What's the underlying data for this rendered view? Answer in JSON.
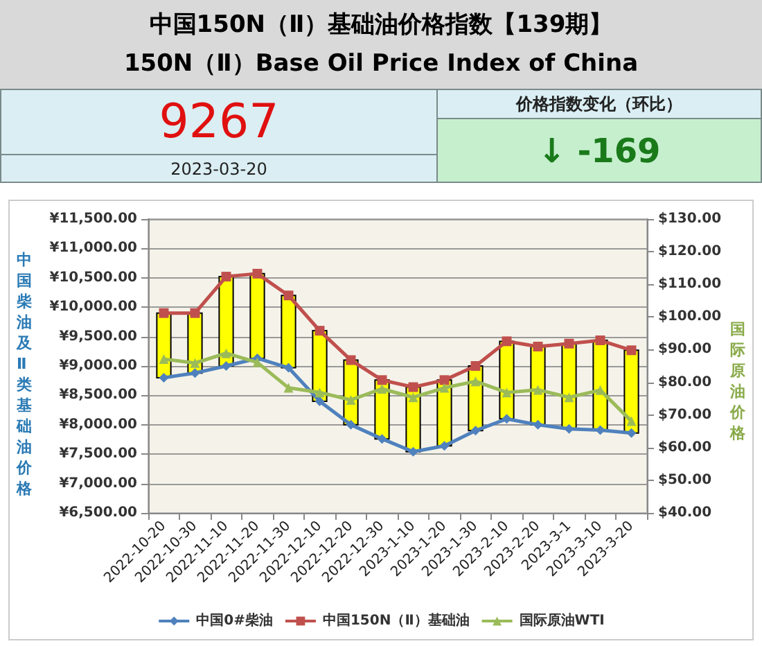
{
  "chart_data": {
    "type": "line",
    "title": "中国150N（Ⅱ）基础油价格指数【139期】",
    "subtitle": "150N（Ⅱ）Base Oil Price Index of China",
    "annotations": [
      "9267",
      "2023-03-20",
      "价格指数变化（环比）",
      "↓ -169"
    ],
    "ylabel": "中国柴油及Ⅱ类基础油价格",
    "y2label": "国际原油价格",
    "categories": [
      "2022-10-20",
      "2022-10-30",
      "2022-11-10",
      "2022-11-20",
      "2022-11-30",
      "2022-12-10",
      "2022-12-20",
      "2022-12-30",
      "2023-1-10",
      "2023-1-20",
      "2023-1-30",
      "2023-2-10",
      "2023-2-20",
      "2023-3-1",
      "2023-3-10",
      "2023-3-20"
    ],
    "series": [
      {
        "name": "中国0#柴油",
        "color": "#4f81bd",
        "marker": "diamond",
        "values": [
          8800,
          8880,
          9000,
          9130,
          8970,
          8400,
          8000,
          7760,
          7540,
          7640,
          7900,
          8100,
          8000,
          7930,
          7910,
          7860
        ]
      },
      {
        "name": "中国150N（Ⅱ）基础油",
        "color": "#c0504d",
        "marker": "square",
        "values": [
          9900,
          9900,
          10520,
          10570,
          10200,
          9600,
          9100,
          8760,
          8640,
          8760,
          9000,
          9420,
          9330,
          9380,
          9436,
          9267
        ]
      },
      {
        "name": "国际原油WTI",
        "color": "#9bbb59",
        "marker": "triangle",
        "axis": "y2",
        "values": [
          87.1,
          85.9,
          88.9,
          86.1,
          78.3,
          76.9,
          74.6,
          78.0,
          75.4,
          78.3,
          80.3,
          76.9,
          77.7,
          75.4,
          77.6,
          68.1
        ]
      },
      {
        "type": "bar",
        "color": "#ffff00",
        "base": [
          8800,
          8880,
          9000,
          9130,
          8970,
          8400,
          8000,
          7760,
          7540,
          7640,
          7900,
          8100,
          8000,
          7930,
          7910,
          7860
        ],
        "values": [
          1100,
          1020,
          1520,
          1440,
          1230,
          1200,
          1100,
          1000,
          1100,
          1120,
          1100,
          1320,
          1330,
          1450,
          1526,
          1407
        ]
      }
    ],
    "ylim": [
      6500,
      11500
    ],
    "yticks": [
      {
        "value": 6500,
        "label": "¥6,500.00"
      },
      {
        "value": 7000,
        "label": "¥7,000.00"
      },
      {
        "value": 7500,
        "label": "¥7,500.00"
      },
      {
        "value": 8000,
        "label": "¥8,000.00"
      },
      {
        "value": 8500,
        "label": "¥8,500.00"
      },
      {
        "value": 9000,
        "label": "¥9,000.00"
      },
      {
        "value": 9500,
        "label": "¥9,500.00"
      },
      {
        "value": 10000,
        "label": "¥10,000.00"
      },
      {
        "value": 10500,
        "label": "¥10,500.00"
      },
      {
        "value": 11000,
        "label": "¥11,000.00"
      },
      {
        "value": 11500,
        "label": "¥11,500.00"
      }
    ],
    "y2lim": [
      40,
      130
    ],
    "y2ticks": [
      {
        "value": 40,
        "label": "$40.00"
      },
      {
        "value": 50,
        "label": "$50.00"
      },
      {
        "value": 60,
        "label": "$60.00"
      },
      {
        "value": 70,
        "label": "$70.00"
      },
      {
        "value": 80,
        "label": "$80.00"
      },
      {
        "value": 90,
        "label": "$90.00"
      },
      {
        "value": 100,
        "label": "$100.00"
      },
      {
        "value": 110,
        "label": "$110.00"
      },
      {
        "value": 120,
        "label": "$120.00"
      },
      {
        "value": 130,
        "label": "$130.00"
      }
    ],
    "grid": "y",
    "legend": "bottom"
  }
}
